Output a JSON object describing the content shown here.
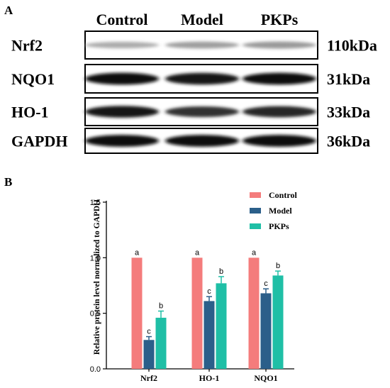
{
  "panel_a": {
    "label": "A",
    "columns": [
      "Control",
      "Model",
      "PKPs"
    ],
    "rows": [
      {
        "protein": "Nrf2",
        "weight": "110kDa",
        "intensity": [
          0.28,
          0.34,
          0.36
        ]
      },
      {
        "protein": "NQO1",
        "weight": "31kDa",
        "intensity": [
          0.98,
          0.95,
          0.97
        ]
      },
      {
        "protein": "HO-1",
        "weight": "33kDa",
        "intensity": [
          0.95,
          0.82,
          0.88
        ]
      },
      {
        "protein": "GAPDH",
        "weight": "36kDa",
        "intensity": [
          0.97,
          0.97,
          0.97
        ]
      }
    ]
  },
  "panel_b": {
    "label": "B"
  },
  "chart_data": {
    "type": "bar",
    "categories": [
      "Nrf2",
      "HO-1",
      "NQO1"
    ],
    "ylabel": "Relative protein level normalized to GAPDH",
    "xlabel": "",
    "ylim": [
      0,
      1.5
    ],
    "yticks": [
      "0.0",
      "0.5",
      "1.0",
      "1.5"
    ],
    "series": [
      {
        "name": "Control",
        "color": "#F47C7C",
        "values": [
          1.0,
          1.0,
          1.0
        ],
        "errors": [
          0,
          0,
          0
        ],
        "letters": [
          "a",
          "a",
          "a"
        ]
      },
      {
        "name": "Model",
        "color": "#2B5F8A",
        "values": [
          0.26,
          0.61,
          0.68
        ],
        "errors": [
          0.03,
          0.04,
          0.04
        ],
        "letters": [
          "c",
          "c",
          "c"
        ]
      },
      {
        "name": "PKPs",
        "color": "#1FBFA6",
        "values": [
          0.46,
          0.77,
          0.84
        ],
        "errors": [
          0.06,
          0.06,
          0.04
        ],
        "letters": [
          "b",
          "b",
          "b"
        ]
      }
    ],
    "legend": "top-right",
    "grid": false
  }
}
